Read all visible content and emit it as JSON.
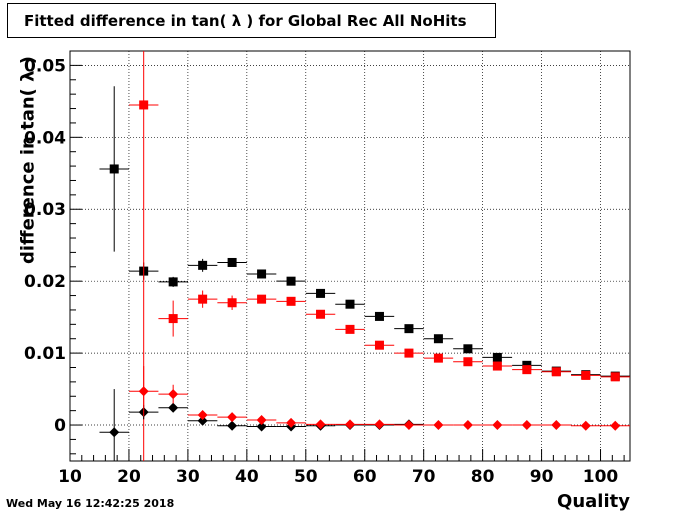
{
  "title": "Fitted difference in tan( λ ) for Global Rec All NoHits",
  "timestamp": "Wed May 16 12:42:25 2018",
  "chart_data": {
    "type": "scatter",
    "title": "Fitted difference in tan( λ ) for Global Rec All NoHits",
    "xlabel": "Quality",
    "ylabel": "difference in tan( λ )",
    "xlim": [
      10,
      105
    ],
    "ylim": [
      -0.005,
      0.052
    ],
    "x_ticks": [
      10,
      20,
      30,
      40,
      50,
      60,
      70,
      80,
      90,
      100
    ],
    "y_ticks": [
      0,
      0.01,
      0.02,
      0.03,
      0.04,
      0.05
    ],
    "x_tick_labels": [
      "10",
      "20",
      "30",
      "40",
      "50",
      "60",
      "70",
      "80",
      "90",
      "100"
    ],
    "y_tick_labels": [
      "0",
      "0.01",
      "0.02",
      "0.03",
      "0.04",
      "0.05"
    ],
    "grid": true,
    "bin_half_width": 2.5,
    "series": [
      {
        "marker": "square",
        "color": "#000000",
        "points": [
          {
            "x": 17.5,
            "y": 0.0356,
            "err": 0.0115
          },
          {
            "x": 22.5,
            "y": 0.0214,
            "err": 0.0012
          },
          {
            "x": 27.5,
            "y": 0.0199,
            "err": 0.0007
          },
          {
            "x": 32.5,
            "y": 0.0222,
            "err": 0.0009
          },
          {
            "x": 37.5,
            "y": 0.0226,
            "err": 0.0005
          },
          {
            "x": 42.5,
            "y": 0.021,
            "err": 0.0004
          },
          {
            "x": 47.5,
            "y": 0.02,
            "err": 0.0003
          },
          {
            "x": 52.5,
            "y": 0.0183,
            "err": 0.0003
          },
          {
            "x": 57.5,
            "y": 0.0168,
            "err": 0.0003
          },
          {
            "x": 62.5,
            "y": 0.0151,
            "err": 0.0002
          },
          {
            "x": 67.5,
            "y": 0.0134,
            "err": 0.0002
          },
          {
            "x": 72.5,
            "y": 0.012,
            "err": 0.0002
          },
          {
            "x": 77.5,
            "y": 0.0106,
            "err": 0.0002
          },
          {
            "x": 82.5,
            "y": 0.0094,
            "err": 0.0002
          },
          {
            "x": 87.5,
            "y": 0.0083,
            "err": 0.0002
          },
          {
            "x": 92.5,
            "y": 0.0075,
            "err": 0.0002
          },
          {
            "x": 97.5,
            "y": 0.007,
            "err": 0.0002
          },
          {
            "x": 102.5,
            "y": 0.0068,
            "err": 0.0002
          }
        ]
      },
      {
        "marker": "square",
        "color": "#ff0000",
        "points": [
          {
            "x": 22.5,
            "y": 0.0445,
            "err": 0.05
          },
          {
            "x": 27.5,
            "y": 0.0148,
            "err": 0.0025
          },
          {
            "x": 32.5,
            "y": 0.0175,
            "err": 0.0012
          },
          {
            "x": 37.5,
            "y": 0.017,
            "err": 0.001
          },
          {
            "x": 42.5,
            "y": 0.0175,
            "err": 0.0005
          },
          {
            "x": 47.5,
            "y": 0.0172,
            "err": 0.0004
          },
          {
            "x": 52.5,
            "y": 0.0154,
            "err": 0.0003
          },
          {
            "x": 57.5,
            "y": 0.0133,
            "err": 0.0003
          },
          {
            "x": 62.5,
            "y": 0.0111,
            "err": 0.0002
          },
          {
            "x": 67.5,
            "y": 0.01,
            "err": 0.0002
          },
          {
            "x": 72.5,
            "y": 0.0093,
            "err": 0.0002
          },
          {
            "x": 77.5,
            "y": 0.0088,
            "err": 0.0002
          },
          {
            "x": 82.5,
            "y": 0.0082,
            "err": 0.0002
          },
          {
            "x": 87.5,
            "y": 0.0077,
            "err": 0.0002
          },
          {
            "x": 92.5,
            "y": 0.0074,
            "err": 0.0002
          },
          {
            "x": 97.5,
            "y": 0.0069,
            "err": 0.0002
          },
          {
            "x": 102.5,
            "y": 0.0067,
            "err": 0.0002
          }
        ]
      },
      {
        "marker": "diamond",
        "color": "#000000",
        "points": [
          {
            "x": 17.5,
            "y": -0.001,
            "err": 0.006
          },
          {
            "x": 22.5,
            "y": 0.0018,
            "err": 0.001
          },
          {
            "x": 27.5,
            "y": 0.0024,
            "err": 0.0006
          },
          {
            "x": 32.5,
            "y": 0.0006,
            "err": 0.0003
          },
          {
            "x": 37.5,
            "y": -0.0001,
            "err": 0.0002
          },
          {
            "x": 42.5,
            "y": -0.0002,
            "err": 0.0002
          },
          {
            "x": 47.5,
            "y": -0.0002,
            "err": 0.0002
          },
          {
            "x": 52.5,
            "y": -0.0001,
            "err": 0.0001
          },
          {
            "x": 57.5,
            "y": 0.0,
            "err": 0.0001
          },
          {
            "x": 62.5,
            "y": 0.0,
            "err": 0.0001
          },
          {
            "x": 67.5,
            "y": 0.0001,
            "err": 0.0001
          }
        ]
      },
      {
        "marker": "diamond",
        "color": "#ff0000",
        "points": [
          {
            "x": 22.5,
            "y": 0.0047,
            "err": 0.0035
          },
          {
            "x": 27.5,
            "y": 0.0043,
            "err": 0.0013
          },
          {
            "x": 32.5,
            "y": 0.0014,
            "err": 0.0005
          },
          {
            "x": 37.5,
            "y": 0.0011,
            "err": 0.0003
          },
          {
            "x": 42.5,
            "y": 0.0007,
            "err": 0.0002
          },
          {
            "x": 47.5,
            "y": 0.0003,
            "err": 0.0002
          },
          {
            "x": 52.5,
            "y": 0.0001,
            "err": 0.0001
          },
          {
            "x": 57.5,
            "y": 0.0001,
            "err": 0.0001
          },
          {
            "x": 62.5,
            "y": 0.0001,
            "err": 0.0001
          },
          {
            "x": 67.5,
            "y": 0.0,
            "err": 0.0001
          },
          {
            "x": 72.5,
            "y": 0.0,
            "err": 0.0001
          },
          {
            "x": 77.5,
            "y": 0.0,
            "err": 0.0001
          },
          {
            "x": 82.5,
            "y": 0.0,
            "err": 0.0001
          },
          {
            "x": 87.5,
            "y": 0.0,
            "err": 0.0001
          },
          {
            "x": 92.5,
            "y": 0.0,
            "err": 0.0001
          },
          {
            "x": 97.5,
            "y": -0.0001,
            "err": 0.0001
          },
          {
            "x": 102.5,
            "y": -0.0001,
            "err": 0.0001
          }
        ]
      }
    ]
  }
}
